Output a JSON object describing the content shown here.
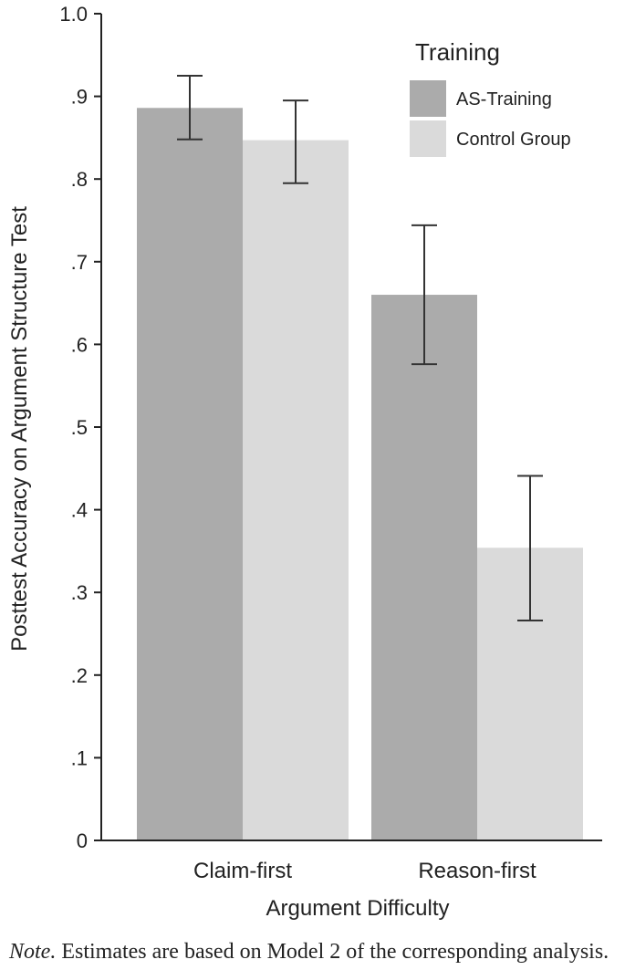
{
  "chart_data": {
    "type": "bar",
    "categories": [
      "Claim-first",
      "Reason-first"
    ],
    "series": [
      {
        "name": "AS-Training",
        "values": [
          0.886,
          0.66
        ],
        "error_low": [
          0.848,
          0.576
        ],
        "error_high": [
          0.925,
          0.744
        ],
        "color": "#ababab"
      },
      {
        "name": "Control Group",
        "values": [
          0.847,
          0.354
        ],
        "error_low": [
          0.795,
          0.266
        ],
        "error_high": [
          0.895,
          0.441
        ],
        "color": "#dadada"
      }
    ],
    "xlabel": "Argument Difficulty",
    "ylabel": "Posttest Accuracy on Argument Structure Test",
    "ylim": [
      0,
      1.0
    ],
    "yticks": [
      0,
      0.1,
      0.2,
      0.3,
      0.4,
      0.5,
      0.6,
      0.7,
      0.8,
      0.9,
      1.0
    ],
    "ytick_labels": [
      "0",
      ".1",
      ".2",
      ".3",
      ".4",
      ".5",
      ".6",
      ".7",
      ".8",
      ".9",
      "1.0"
    ],
    "legend_title": "Training",
    "legend_position": "top-right",
    "grid": false
  },
  "note": {
    "label": "Note.",
    "text": " Estimates are based on Model 2 of the corresponding analysis."
  }
}
